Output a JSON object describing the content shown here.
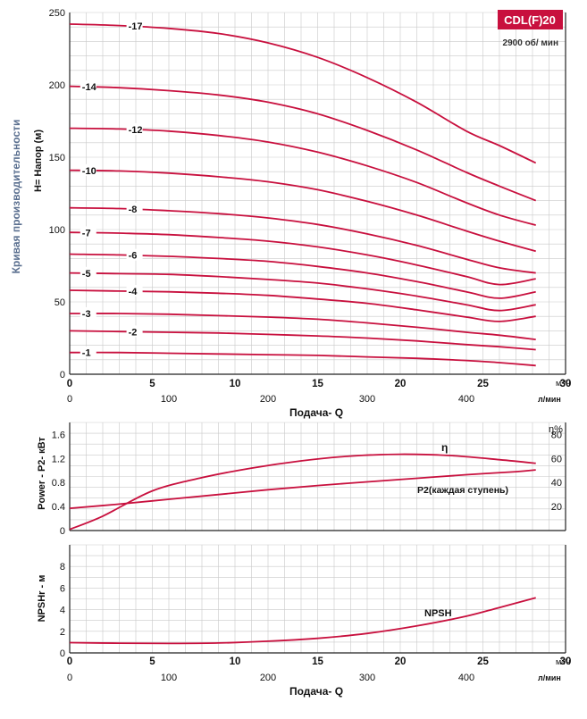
{
  "badge": {
    "model": "CDL(F)20",
    "speed": "2900 об/ мин"
  },
  "labels": {
    "side_title": "Кривая производительности",
    "head_axis": "H= Напор (м)",
    "x_title": "Подача- Q",
    "unit_m3h": "м³/ч",
    "unit_lmin": "л/мин",
    "power_axis": "Power - P2- кВт",
    "eff_unit": "η%",
    "eff_label": "η",
    "power_label": "P2(каждая ступень)",
    "npsh_axis": "NPSHr - м",
    "npsh_label": "NPSH"
  },
  "colors": {
    "curve": "#c8103e",
    "badge_bg": "#c8103e",
    "grid": "#c9c9c9",
    "axis": "#222222",
    "text": "#111111"
  },
  "chart_data": [
    {
      "type": "line",
      "name": "head",
      "xlim": [
        0,
        30
      ],
      "ylim": [
        0,
        250
      ],
      "x_ticks": [
        0,
        5,
        10,
        15,
        20,
        25,
        30
      ],
      "y_ticks": [
        0,
        50,
        100,
        150,
        200,
        250
      ],
      "x2_ticks": [
        0,
        100,
        200,
        300,
        400
      ],
      "x2_factor": 16.6667,
      "series": [
        {
          "name": "-17",
          "label_x": 3.6,
          "x": [
            0,
            3,
            6,
            9,
            12,
            15,
            18,
            21,
            24,
            26,
            28.2
          ],
          "y": [
            242,
            241,
            239,
            235.5,
            229,
            219,
            205,
            188,
            168,
            158,
            146
          ]
        },
        {
          "name": "-14",
          "label_x": 0.8,
          "x": [
            0,
            3,
            6,
            9,
            12,
            15,
            18,
            21,
            24,
            26,
            28.2
          ],
          "y": [
            199,
            198,
            196,
            193,
            188,
            180,
            168.5,
            155,
            139.5,
            130,
            120
          ]
        },
        {
          "name": "-12",
          "label_x": 3.6,
          "x": [
            0,
            3,
            6,
            9,
            12,
            15,
            18,
            21,
            24,
            26,
            28.2
          ],
          "y": [
            170,
            169.5,
            168,
            165,
            160.5,
            153.5,
            144,
            132.5,
            118.5,
            110,
            103
          ]
        },
        {
          "name": "-10",
          "label_x": 0.8,
          "x": [
            0,
            3,
            6,
            9,
            12,
            15,
            18,
            21,
            24,
            26,
            28.2
          ],
          "y": [
            141,
            140.5,
            139,
            136.5,
            133,
            127.5,
            119.5,
            110,
            99,
            92,
            85
          ]
        },
        {
          "name": "-8",
          "label_x": 3.6,
          "x": [
            0,
            3,
            6,
            9,
            12,
            15,
            18,
            21,
            24,
            26,
            28.2
          ],
          "y": [
            115,
            114.5,
            113,
            111,
            108,
            103.5,
            97,
            89,
            79.5,
            73.5,
            70
          ]
        },
        {
          "name": "-7",
          "label_x": 0.8,
          "x": [
            0,
            3,
            6,
            9,
            12,
            15,
            18,
            21,
            24,
            26,
            28.2
          ],
          "y": [
            98,
            97.5,
            96.5,
            94.5,
            92,
            88,
            82.5,
            75.5,
            67.5,
            62,
            66
          ]
        },
        {
          "name": "-6",
          "label_x": 3.6,
          "x": [
            0,
            3,
            6,
            9,
            12,
            15,
            18,
            21,
            24,
            26,
            28.2
          ],
          "y": [
            83,
            82.5,
            81.5,
            80,
            78,
            74.5,
            70,
            64,
            57,
            52.5,
            57
          ]
        },
        {
          "name": "-5",
          "label_x": 0.8,
          "x": [
            0,
            3,
            6,
            9,
            12,
            15,
            18,
            21,
            24,
            26,
            28.2
          ],
          "y": [
            70,
            69.5,
            69,
            67.5,
            65.5,
            63,
            59,
            54,
            48,
            44,
            48
          ]
        },
        {
          "name": "-4",
          "label_x": 3.6,
          "x": [
            0,
            3,
            6,
            9,
            12,
            15,
            18,
            21,
            24,
            26,
            28.2
          ],
          "y": [
            58,
            57.5,
            57,
            56,
            54.5,
            52,
            49,
            44.5,
            39.5,
            36.5,
            40
          ]
        },
        {
          "name": "-3",
          "label_x": 0.8,
          "x": [
            0,
            3,
            6,
            9,
            12,
            15,
            18,
            21,
            24,
            26,
            28.2
          ],
          "y": [
            42,
            42,
            41.5,
            40.5,
            39.5,
            38,
            35.5,
            32.5,
            29,
            27,
            24
          ]
        },
        {
          "name": "-2",
          "label_x": 3.6,
          "x": [
            0,
            3,
            6,
            9,
            12,
            15,
            18,
            21,
            24,
            26,
            28.2
          ],
          "y": [
            30,
            29.5,
            29,
            28.5,
            27.5,
            26.5,
            25,
            23,
            20.5,
            19,
            17
          ]
        },
        {
          "name": "-1",
          "label_x": 0.8,
          "x": [
            0,
            3,
            6,
            9,
            12,
            15,
            18,
            21,
            24,
            26,
            28.2
          ],
          "y": [
            15,
            15,
            14.5,
            14,
            13.5,
            13,
            12,
            11,
            9.5,
            8,
            6
          ]
        }
      ]
    },
    {
      "type": "line",
      "name": "power_efficiency",
      "xlim": [
        0,
        30
      ],
      "ylim": [
        0,
        1.8
      ],
      "y_ticks": [
        0,
        0.4,
        0.8,
        1.2,
        1.6
      ],
      "y_tick_labels": [
        "0",
        "0.4",
        "0.8",
        "1.2",
        "1.6"
      ],
      "y2lim": [
        0,
        90
      ],
      "y2_ticks": [
        20,
        40,
        60,
        80
      ],
      "series": [
        {
          "name": "η",
          "axis": "right",
          "x": [
            0,
            2,
            5,
            8,
            11,
            14,
            17,
            20,
            23,
            26,
            28.2
          ],
          "y": [
            1,
            12,
            33,
            44,
            52,
            58,
            62,
            63.5,
            62.5,
            59,
            56
          ]
        },
        {
          "name": "P2(каждая ступень)",
          "axis": "left",
          "x": [
            0,
            3,
            6,
            9,
            12,
            15,
            18,
            21,
            24,
            27,
            28.2
          ],
          "y": [
            0.37,
            0.44,
            0.52,
            0.6,
            0.68,
            0.75,
            0.81,
            0.87,
            0.93,
            0.98,
            1.01
          ]
        }
      ]
    },
    {
      "type": "line",
      "name": "npsh",
      "xlim": [
        0,
        30
      ],
      "ylim": [
        0,
        10
      ],
      "x_ticks": [
        0,
        5,
        10,
        15,
        20,
        25,
        30
      ],
      "y_ticks": [
        0,
        2,
        4,
        6,
        8
      ],
      "x2_ticks": [
        0,
        100,
        200,
        300,
        400
      ],
      "x2_factor": 16.6667,
      "series": [
        {
          "name": "NPSH",
          "x": [
            0,
            3,
            6,
            9,
            12,
            15,
            18,
            21,
            24,
            26,
            28.2
          ],
          "y": [
            0.95,
            0.9,
            0.88,
            0.92,
            1.08,
            1.35,
            1.8,
            2.5,
            3.4,
            4.2,
            5.1
          ]
        }
      ]
    }
  ]
}
